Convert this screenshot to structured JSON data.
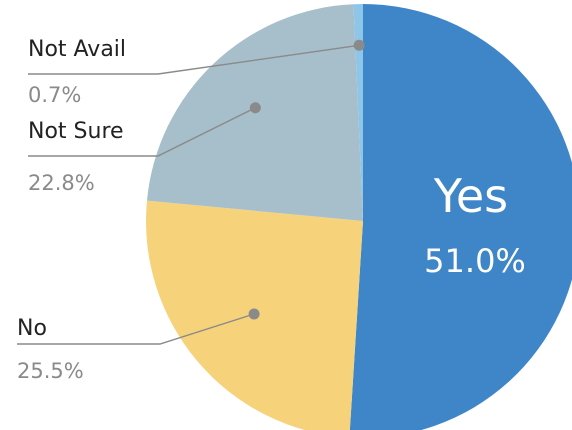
{
  "chart_data": {
    "type": "pie",
    "title": "",
    "slices": [
      {
        "label": "Yes",
        "value": 51.0,
        "display": "51.0%",
        "color": "#3f86c8"
      },
      {
        "label": "No",
        "value": 25.5,
        "display": "25.5%",
        "color": "#f6d37b"
      },
      {
        "label": "Not Sure",
        "value": 22.8,
        "display": "22.8%",
        "color": "#a7bfcb"
      },
      {
        "label": "Not Avail",
        "value": 0.7,
        "display": "0.7%",
        "color": "#8ec6ea"
      }
    ],
    "legend": "none",
    "label_style": "inside label for largest slice, callout labels with leader lines for others"
  }
}
